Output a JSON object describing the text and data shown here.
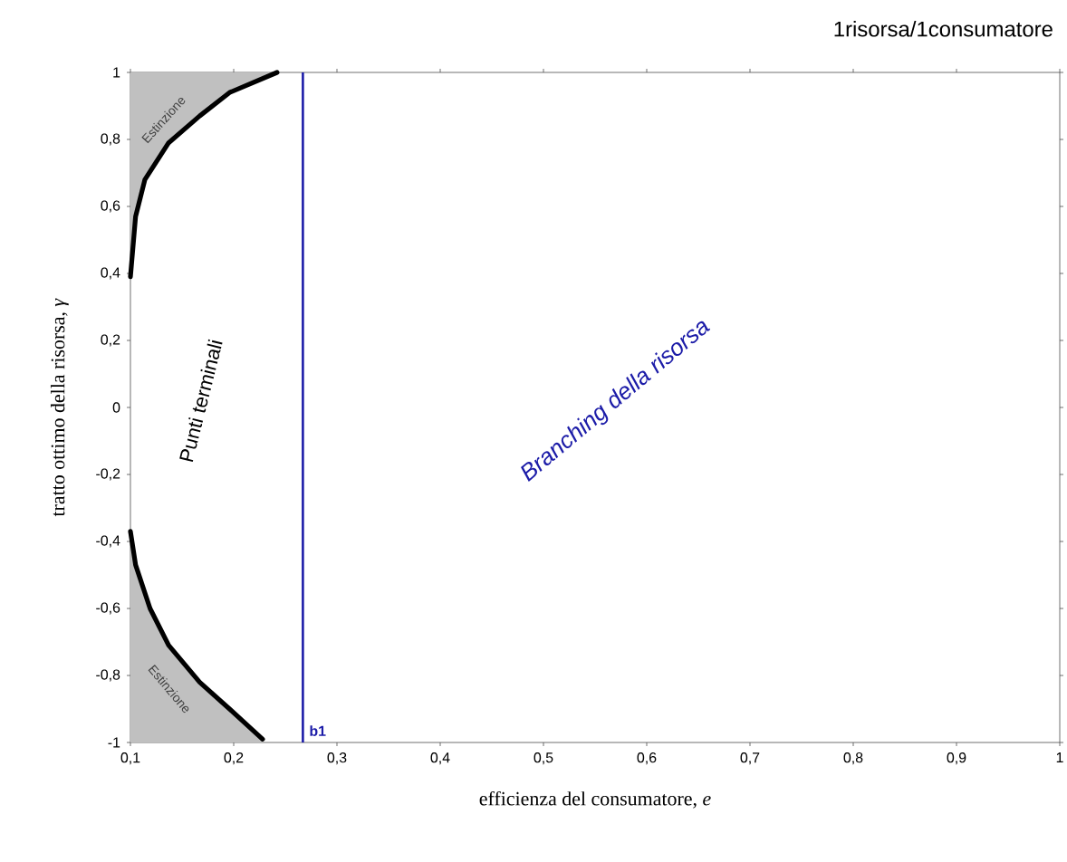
{
  "chart_data": {
    "type": "line",
    "title": "1risorsa/1consumatore",
    "xlabel": "efficienza del consumatore, *e*",
    "ylabel": "tratto ottimo della risorsa, *γ*",
    "xlim": [
      0.1,
      1
    ],
    "ylim": [
      -1,
      1
    ],
    "xticks": [
      {
        "value": 0.1,
        "label": "0,1"
      },
      {
        "value": 0.2,
        "label": "0,2"
      },
      {
        "value": 0.3,
        "label": "0,3"
      },
      {
        "value": 0.4,
        "label": "0,4"
      },
      {
        "value": 0.5,
        "label": "0,5"
      },
      {
        "value": 0.6,
        "label": "0,6"
      },
      {
        "value": 0.7,
        "label": "0,7"
      },
      {
        "value": 0.8,
        "label": "0,8"
      },
      {
        "value": 0.9,
        "label": "0,9"
      },
      {
        "value": 1,
        "label": "1"
      }
    ],
    "yticks": [
      {
        "value": -1,
        "label": "-1"
      },
      {
        "value": -0.8,
        "label": "-0,8"
      },
      {
        "value": -0.6,
        "label": "-0,6"
      },
      {
        "value": -0.4,
        "label": "-0,4"
      },
      {
        "value": -0.2,
        "label": "-0,2"
      },
      {
        "value": 0,
        "label": "0"
      },
      {
        "value": 0.2,
        "label": "0,2"
      },
      {
        "value": 0.4,
        "label": "0,4"
      },
      {
        "value": 0.6,
        "label": "0,6"
      },
      {
        "value": 0.8,
        "label": "0,8"
      },
      {
        "value": 1,
        "label": "1"
      }
    ],
    "series": [
      {
        "color": "#000000",
        "x": [
          0.1,
          0.105,
          0.114,
          0.137,
          0.167,
          0.196,
          0.242
        ],
        "values": [
          0.39,
          0.57,
          0.68,
          0.79,
          0.87,
          0.94,
          1.0
        ],
        "lower": [
          0.39,
          0.57,
          0.68,
          0.79,
          0.87,
          0.94,
          1.0
        ],
        "upper": [
          1,
          1,
          1,
          1,
          1,
          1,
          1
        ]
      },
      {
        "color": "#000000",
        "x": [
          0.1,
          0.105,
          0.119,
          0.137,
          0.167,
          0.196,
          0.228
        ],
        "values": [
          -0.37,
          -0.47,
          -0.6,
          -0.71,
          -0.82,
          -0.9,
          -0.99
        ],
        "lower": [
          -1,
          -1,
          -1,
          -1,
          -1,
          -1,
          -1
        ],
        "upper": [
          -0.37,
          -0.47,
          -0.6,
          -0.71,
          -0.82,
          -0.9,
          -0.99
        ]
      }
    ],
    "ref_lines": [
      {
        "axis": "x",
        "value": 0.267,
        "label": "b1",
        "color": "#1c1ca8"
      }
    ],
    "annotations": [
      "Estinzione",
      "Estinzione",
      "Punti terminali",
      "Branching della risorsa"
    ]
  }
}
